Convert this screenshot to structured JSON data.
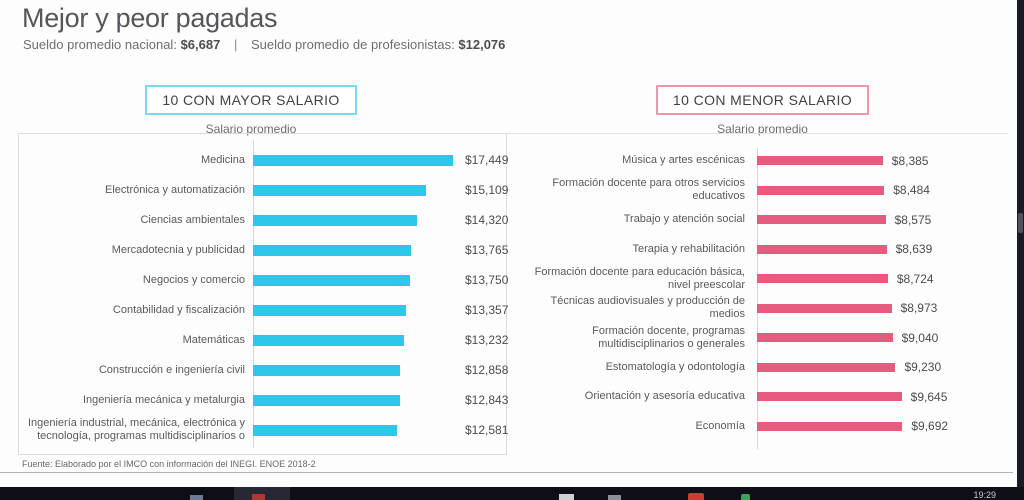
{
  "header": {
    "title": "Mejor y peor pagadas",
    "stat1_label": "Sueldo promedio nacional:",
    "stat1_value": "$6,687",
    "divider": "|",
    "stat2_label": "Sueldo promedio de profesionistas:",
    "stat2_value": "$12,076"
  },
  "chart_data": [
    {
      "type": "bar",
      "orientation": "horizontal",
      "title": "10 CON MAYOR SALARIO",
      "axis_caption": "Salario promedio",
      "bar_color": "#2DC8E8",
      "frame_color": "#76DCEE",
      "value_label_position": "fixed-column",
      "xlim": [
        0,
        18000
      ],
      "grid": false,
      "categories": [
        "Medicina",
        "Electrónica y automatización",
        "Ciencias ambientales",
        "Mercadotecnia y publicidad",
        "Negocios y comercio",
        "Contabilidad y fiscalización",
        "Matemáticas",
        "Construcción e ingeniería civil",
        "Ingeniería mecánica y metalurgia",
        "Ingeniería industrial, mecánica, electrónica y tecnología, programas multidisciplinarios o"
      ],
      "values": [
        17449,
        15109,
        14320,
        13765,
        13750,
        13357,
        13232,
        12858,
        12843,
        12581
      ],
      "value_labels": [
        "$17,449",
        "$15,109",
        "$14,320",
        "$13,765",
        "$13,750",
        "$13,357",
        "$13,232",
        "$12,858",
        "$12,843",
        "$12,581"
      ]
    },
    {
      "type": "bar",
      "orientation": "horizontal",
      "title": "10 CON MENOR SALARIO",
      "axis_caption": "Salario promedio",
      "bar_color": "#E75B7F",
      "frame_color": "#F195AB",
      "value_label_position": "after-bar",
      "xlim": [
        0,
        10000
      ],
      "grid": false,
      "categories": [
        "Música y artes escénicas",
        "Formación docente para otros servicios educativos",
        "Trabajo y atención social",
        "Terapia y rehabilitación",
        "Formación docente para educación básica, nivel preescolar",
        "Técnicas audiovisuales y producción de medios",
        "Formación docente, programas multidisciplinarios o generales",
        "Estomatología y odontología",
        "Orientación y asesoría educativa",
        "Economía"
      ],
      "values": [
        8385,
        8484,
        8575,
        8639,
        8724,
        8973,
        9040,
        9230,
        9645,
        9692
      ],
      "value_labels": [
        "$8,385",
        "$8,484",
        "$8,575",
        "$8,639",
        "$8,724",
        "$8,973",
        "$9,040",
        "$9,230",
        "$9,645",
        "$9,692"
      ]
    }
  ],
  "footer": {
    "source": "Fuente: Elaborado por el IMCO con información del INEGI. ENOE 2018-2"
  },
  "taskbar": {
    "clock": "19:29"
  }
}
